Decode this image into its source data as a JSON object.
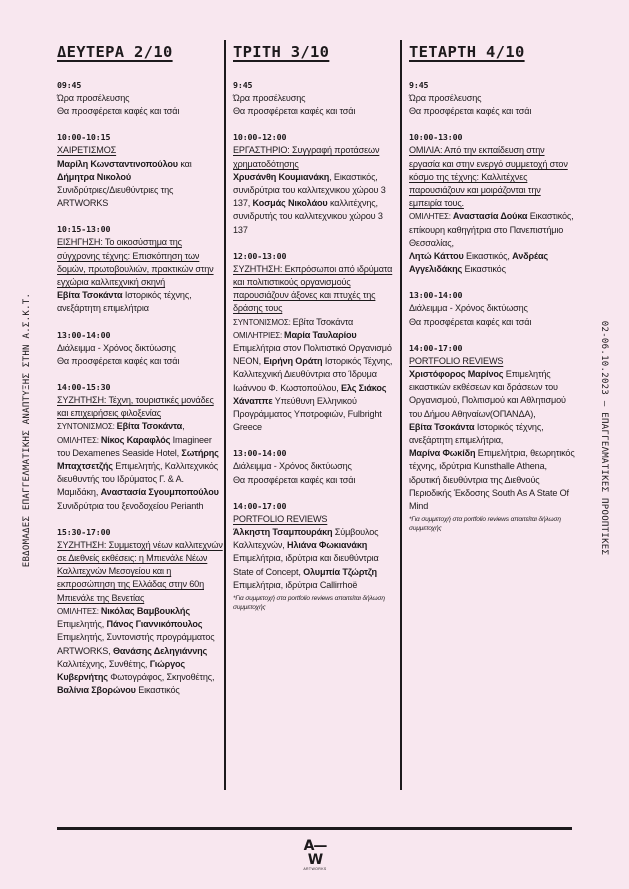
{
  "side_left": "ΕΒΔΟΜΑΔΕΣ ΕΠΑΓΓΕΛΜΑΤΙΚΗΣ ΑΝΑΠΤΥΞΗΣ ΣΤΗΝ Α.Σ.Κ.Τ.",
  "side_right": "02-06.10.2023 – ΕΠΑΓΓΕΛΜΑΤΙΚΕΣ ΠΡΟΟΠΤΙΚΕΣ",
  "logo": {
    "mark": "A—W",
    "text": "ARTWORKS"
  },
  "days": [
    {
      "title": "ΔΕΥΤΕΡΑ 2/10",
      "sessions": [
        {
          "time": "09:45",
          "lines": [
            "Ώρα προσέλευσης",
            "Θα προσφέρεται καφές και τσάι"
          ]
        },
        {
          "time": "10:00-10:15",
          "heading": "ΧΑΙΡΕΤΙΣΜΟΣ",
          "parts": [
            {
              "t": "Μαρίλη Κωνσταντινοπούλου",
              "b": true
            },
            {
              "t": " και "
            },
            {
              "t": "Δήμητρα Νικολού",
              "b": true
            },
            {
              "br": true
            },
            {
              "t": "Συνιδρύτριες/Διευθύντριες της ARTWORKS"
            }
          ]
        },
        {
          "time": "10:15-13:00",
          "heading": "ΕΙΣΗΓΗΣΗ: Το οικοσύστημα της σύγχρονης τέχνης: Επισκόπηση των δομών, πρωτοβουλιών, πρακτικών στην εγχώρια καλλιτεχνική σκηνή",
          "parts": [
            {
              "t": "Εβίτα Τσοκάντα",
              "b": true
            },
            {
              "t": " Ιστορικός τέχνης, ανεξάρτητη επιμελήτρια"
            }
          ]
        },
        {
          "time": "13:00-14:00",
          "lines": [
            "Διάλειμμα - Χρόνος δικτύωσης",
            "Θα προσφέρεται καφές και τσάι"
          ]
        },
        {
          "time": "14:00-15:30",
          "heading": "ΣΥΖΗΤΗΣΗ: Τέχνη, τουριστικές μονάδες και επιχειρήσεις φιλοξενίας",
          "parts": [
            {
              "t": "ΣΥΝΤΟΝΙΣΜΟΣ: ",
              "lbl": true
            },
            {
              "t": "Εβίτα Τσοκάντα",
              "b": true
            },
            {
              "t": ", "
            },
            {
              "t": "ΟΜΙΛΗΤΕΣ: ",
              "lbl": true
            },
            {
              "t": "Νίκος Καραφλός",
              "b": true
            },
            {
              "t": " Imagineer του Dexamenes Seaside Hotel, "
            },
            {
              "t": "Σωτήρης Μπαχτσετζής",
              "b": true
            },
            {
              "t": " Επιμελητής, Καλλιτεχνικός διευθυντής του Ιδρύματος Γ. & Α. Μαμιδάκη, "
            },
            {
              "t": "Αναστασία Σγουμποπούλου",
              "b": true
            },
            {
              "t": " Συνιδρύτρια του ξενοδοχείου Perianth"
            }
          ]
        },
        {
          "time": "15:30-17:00",
          "heading": "ΣΥΖΗΤΗΣΗ: Συμμετοχή νέων καλλιτεχνών σε Διεθνείς εκθέσεις: η Μπιενάλε Νέων Καλλιτεχνών Μεσογείου και η εκπροσώπηση της Ελλάδας στην 60η Μπιενάλε της Βενετίας",
          "parts": [
            {
              "t": "ΟΜΙΛΗΤΕΣ: ",
              "lbl": true
            },
            {
              "t": "Νικόλας Βαμβουκλής",
              "b": true
            },
            {
              "t": " Επιμελητής, "
            },
            {
              "t": "Πάνος Γιαννικόπουλος",
              "b": true
            },
            {
              "t": " Επιμελητής, Συντονιστής προγράμματος ARTWORKS, "
            },
            {
              "t": "Θανάσης Δεληγιάννης",
              "b": true
            },
            {
              "t": " Καλλιτέχνης, Συνθέτης, "
            },
            {
              "t": "Γιώργος Κυβερνήτης",
              "b": true
            },
            {
              "t": " Φωτογράφος, Σκηνοθέτης, "
            },
            {
              "t": "Βαλίνια Σβορώνου",
              "b": true
            },
            {
              "t": " Εικαστικός"
            }
          ]
        }
      ]
    },
    {
      "title": "ΤΡΙΤΗ 3/10",
      "sessions": [
        {
          "time": "9:45",
          "lines": [
            "Ώρα προσέλευσης",
            "Θα προσφέρεται καφές και τσάι"
          ]
        },
        {
          "time": "10:00-12:00",
          "heading": "ΕΡΓΑΣΤΗΡΙΟ: Συγγραφή προτάσεων χρηματοδότησης",
          "parts": [
            {
              "t": "Χρυσάνθη Κουμιανάκη",
              "b": true
            },
            {
              "t": ", Εικαστικός, συνιδρύτρια του καλλιτεχνικου χώρου 3 137, "
            },
            {
              "t": "Κοσμάς Νικολάου",
              "b": true
            },
            {
              "t": " καλλιτέχνης, συνιδρυτής του καλλιτεχνικου χώρου 3 137"
            }
          ]
        },
        {
          "time": "12:00-13:00",
          "heading": "ΣΥΖΗΤΗΣΗ: Εκπρόσωποι από ιδρύματα και πολιτιστικούς οργανισμούς παρουσιάζουν άξονες και πτυχές της δράσης τους",
          "parts": [
            {
              "t": "ΣΥΝΤΟΝΙΣΜΟΣ: ",
              "lbl": true
            },
            {
              "t": " Εβίτα Τσοκάντα"
            },
            {
              "br": true
            },
            {
              "t": "ΟΜΙΛΗΤΡΙΕΣ: ",
              "lbl": true
            },
            {
              "t": "Μαρία Ταυλαρίου",
              "b": true
            },
            {
              "t": " Επιμελήτρια στον Πολιτιστικό Οργανισμό NEON, "
            },
            {
              "t": "Ειρήνη Οράτη",
              "b": true
            },
            {
              "t": " Ιστορικός Τέχνης, Καλλιτεχνική Διευθύντρια στο Ίδρυμα Ιωάννου Φ. Κωστοπούλου, "
            },
            {
              "t": "Ελς Σιάκος Χάναππε",
              "b": true
            },
            {
              "t": " Υπεύθυνη Ελληνικού Προγράμματος Υποτροφιών, Fulbright Greece"
            }
          ]
        },
        {
          "time": "13:00-14:00",
          "lines": [
            "Διάλειμμα - Χρόνος δικτύωσης",
            "Θα προσφέρεται καφές και τσάι"
          ]
        },
        {
          "time": "14:00-17:00",
          "heading": "PORTFOLIO REVIEWS",
          "parts": [
            {
              "t": "Άλκηστη Τσαμπουράκη",
              "b": true
            },
            {
              "t": " Σύμβουλος Καλλιτεχνών, "
            },
            {
              "t": "Ηλιάνα Φωκιανάκη",
              "b": true
            },
            {
              "t": " Επιμελήτρια, ιδρύτρια και διευθύντρια State of Concept, "
            },
            {
              "t": "Ολυμπία Τζώρτζη",
              "b": true
            },
            {
              "t": " Επιμελήτρια, ιδρύτρια Callirrhoë"
            }
          ],
          "note": "*Για συμμετοχή στα portfolio reviews απαιτείται δήλωση συμμετοχής"
        }
      ]
    },
    {
      "title": "ΤΕΤΑΡΤΗ 4/10",
      "sessions": [
        {
          "time": "9:45",
          "lines": [
            "Ώρα προσέλευσης",
            "Θα προσφέρεται καφές και τσάι"
          ]
        },
        {
          "time": "10:00-13:00",
          "heading": "ΟΜΙΛΙΑ: Από την εκπαίδευση στην εργασία και στην ενεργό συμμετοχή στον κόσμο της τέχνης: Καλλιτέχνες παρουσιάζουν και μοιράζονται την εμπειρία τους.",
          "parts": [
            {
              "t": "ΟΜΙΛΗΤΕΣ: ",
              "lbl": true
            },
            {
              "t": "Αναστασία Δούκα",
              "b": true
            },
            {
              "t": " Εικαστικός, επίκουρη καθηγήτρια στο Πανεπιστήμιο Θεσσαλίας, "
            },
            {
              "br": true
            },
            {
              "t": "Λητώ Κάττου",
              "b": true
            },
            {
              "t": " Εικαστικός, "
            },
            {
              "t": "Ανδρέας Αγγελιδάκης",
              "b": true
            },
            {
              "t": " Εικαστικός"
            }
          ]
        },
        {
          "time": "13:00-14:00",
          "lines": [
            "Διάλειμμα - Χρόνος δικτύωσης",
            "Θα προσφέρεται καφές και τσάι"
          ]
        },
        {
          "time": "14:00-17:00",
          "heading": "PORTFOLIO REVIEWS",
          "parts": [
            {
              "t": "Χριστόφορος Μαρίνος",
              "b": true
            },
            {
              "t": " Επιμελητής εικαστικών εκθέσεων και δράσεων του Οργανισμού, Πολιτισμού και Αθλητισμού του Δήμου Αθηναίων(ΟΠΑΝΔΑ),"
            },
            {
              "br": true
            },
            {
              "t": "Εβίτα Τσοκάντα",
              "b": true
            },
            {
              "t": " Ιστορικός τέχνης, ανεξάρτητη επιμελήτρια,"
            },
            {
              "br": true
            },
            {
              "t": "Μαρίνα Φωκίδη",
              "b": true
            },
            {
              "t": " Επιμελήτρια, θεωρητικός τέχνης, ιδρύτρια Kunsthalle Athena, ιδρυτική διευθύντρια της Διεθνούς Περιοδικής Έκδοσης South As A State Of Mind"
            }
          ],
          "note": "*Για συμμετοχή στα portfolio reviews απαιτείται δήλωση συμμετοχής"
        }
      ]
    }
  ]
}
